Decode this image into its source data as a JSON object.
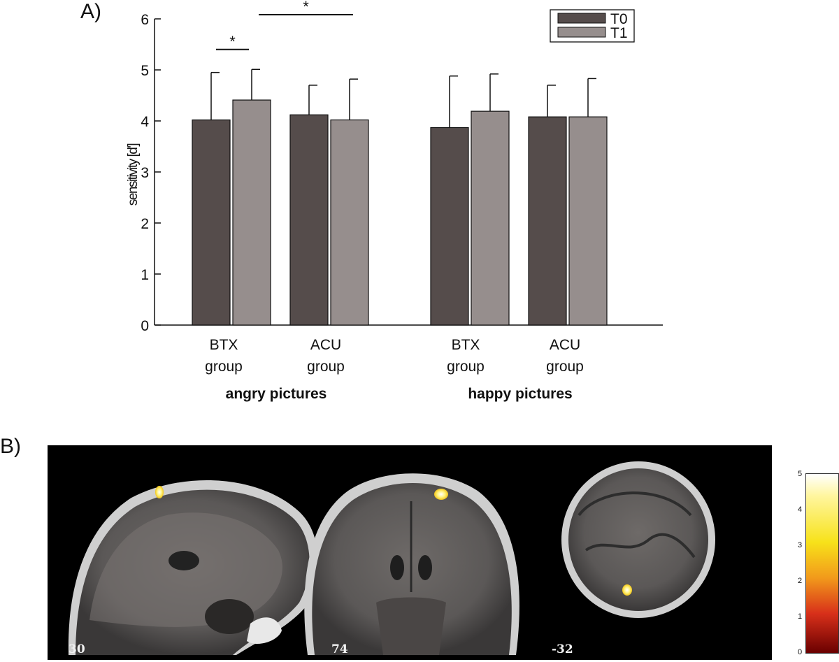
{
  "panel_labels": {
    "a": "A)",
    "b": "B)"
  },
  "chart_data": {
    "type": "bar",
    "ylabel": "sensitivity [d']",
    "ylim": [
      0,
      6
    ],
    "yticks": [
      0,
      1,
      2,
      3,
      4,
      5,
      6
    ],
    "group_labels": [
      "angry pictures",
      "happy pictures"
    ],
    "categories": [
      {
        "line1": "BTX",
        "line2": "group"
      },
      {
        "line1": "ACU",
        "line2": "group"
      },
      {
        "line1": "BTX",
        "line2": "group"
      },
      {
        "line1": "ACU",
        "line2": "group"
      }
    ],
    "series": [
      {
        "name": "T0",
        "color": "#554c4b",
        "values": [
          4.02,
          4.12,
          3.87,
          4.08
        ],
        "errors": [
          0.93,
          0.58,
          1.01,
          0.62
        ]
      },
      {
        "name": "T1",
        "color": "#968e8d",
        "values": [
          4.41,
          4.02,
          4.19,
          4.08
        ],
        "errors": [
          0.6,
          0.8,
          0.73,
          0.75
        ]
      }
    ],
    "legend": {
      "position": "top-right",
      "items": [
        "T0",
        "T1"
      ]
    },
    "significance": [
      {
        "label": "*",
        "between": "BTX angry T0 vs T1",
        "y": 5.4
      },
      {
        "label": "*",
        "between": "BTX vs ACU angry T1",
        "y": 6.0
      }
    ]
  },
  "mri": {
    "slices": [
      {
        "label": "30",
        "view": "sagittal"
      },
      {
        "label": "74",
        "view": "coronal"
      },
      {
        "label": "-32",
        "view": "axial"
      }
    ],
    "colorbar": {
      "ticks": [
        "5",
        "4",
        "3",
        "2",
        "1",
        "0"
      ],
      "colors": [
        "#ffffff",
        "#f7e21a",
        "#f29a1b",
        "#d8301a",
        "#6a0000"
      ]
    }
  }
}
